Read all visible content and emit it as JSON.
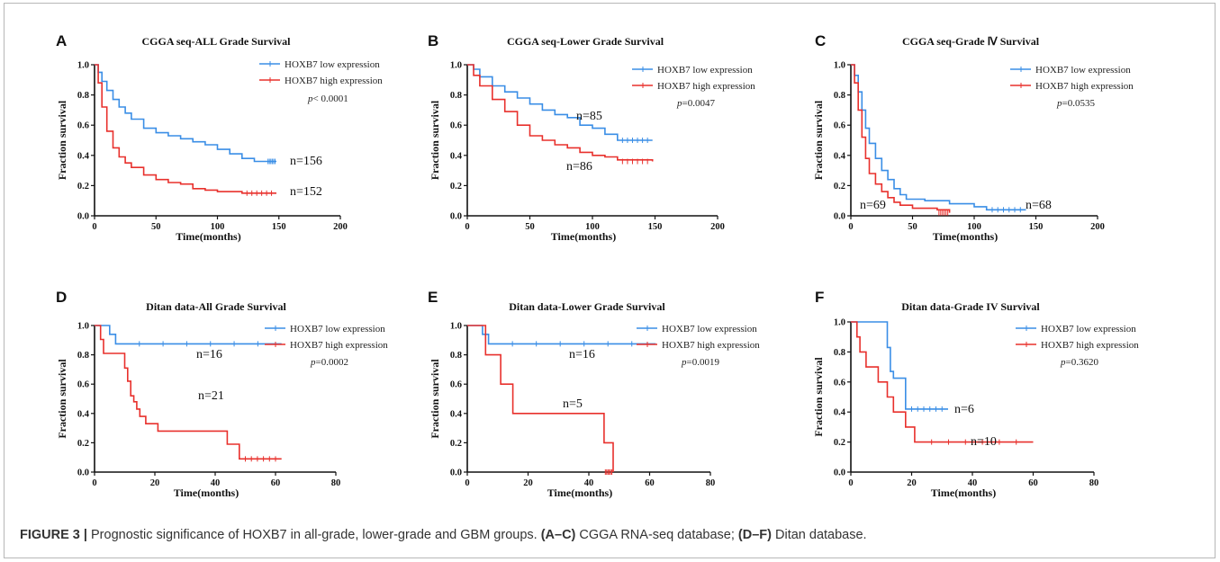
{
  "caption": {
    "label": "FIGURE 3 |",
    "text": "Prognostic significance of HOXB7 in all-grade, lower-grade and GBM groups.",
    "ref1": "(A–C)",
    "ref1_text": "CGGA RNA-seq database;",
    "ref2": "(D–F)",
    "ref2_text": "Ditan database."
  },
  "chart_data": [
    {
      "type": "line",
      "panel": "A",
      "title": "CGGA seq-ALL Grade Survival",
      "xlabel": "Time(months)",
      "ylabel": "Fraction survival",
      "xlim": [
        0,
        200
      ],
      "ylim": [
        0,
        1.0
      ],
      "xticks": [
        0,
        50,
        100,
        150,
        200
      ],
      "yticks": [
        0.0,
        0.2,
        0.4,
        0.6,
        0.8,
        1.0
      ],
      "legend_position": "right",
      "pvalue_label": "p",
      "pvalue_text": "< 0.0001",
      "colors": {
        "low": "#3a8ee6",
        "high": "#e8302c"
      },
      "series": [
        {
          "name": "HOXB7 low expression",
          "n_label": "n=156",
          "x": [
            0,
            3,
            6,
            10,
            15,
            20,
            25,
            30,
            40,
            50,
            60,
            70,
            80,
            90,
            100,
            110,
            120,
            130,
            140,
            148
          ],
          "y": [
            1.0,
            0.95,
            0.89,
            0.83,
            0.77,
            0.72,
            0.68,
            0.64,
            0.58,
            0.55,
            0.53,
            0.51,
            0.49,
            0.47,
            0.44,
            0.41,
            0.38,
            0.36,
            0.36,
            0.36
          ]
        },
        {
          "name": "HOXB7 high expression",
          "n_label": "n=152",
          "x": [
            0,
            3,
            6,
            10,
            15,
            20,
            25,
            30,
            40,
            50,
            60,
            70,
            80,
            90,
            100,
            120,
            148
          ],
          "y": [
            1.0,
            0.88,
            0.72,
            0.56,
            0.45,
            0.39,
            0.35,
            0.32,
            0.27,
            0.24,
            0.22,
            0.21,
            0.18,
            0.17,
            0.16,
            0.15,
            0.15
          ]
        }
      ]
    },
    {
      "type": "line",
      "panel": "B",
      "title": "CGGA seq-Lower Grade Survival",
      "xlabel": "Time(months)",
      "ylabel": "Fraction survival",
      "xlim": [
        0,
        200
      ],
      "ylim": [
        0,
        1.0
      ],
      "xticks": [
        0,
        50,
        100,
        150,
        200
      ],
      "yticks": [
        0.0,
        0.2,
        0.4,
        0.6,
        0.8,
        1.0
      ],
      "legend_position": "right",
      "pvalue_label": "p",
      "pvalue_text": "=0.0047",
      "colors": {
        "low": "#3a8ee6",
        "high": "#e8302c"
      },
      "series": [
        {
          "name": "HOXB7 low expression",
          "n_label": "n=85",
          "x": [
            0,
            5,
            10,
            20,
            30,
            40,
            50,
            60,
            70,
            80,
            90,
            100,
            110,
            120,
            148
          ],
          "y": [
            1.0,
            0.97,
            0.92,
            0.86,
            0.82,
            0.78,
            0.74,
            0.7,
            0.67,
            0.65,
            0.6,
            0.58,
            0.54,
            0.5,
            0.5
          ]
        },
        {
          "name": "HOXB7 high expression",
          "n_label": "n=86",
          "x": [
            0,
            5,
            10,
            20,
            30,
            40,
            50,
            60,
            70,
            80,
            90,
            100,
            110,
            120,
            148
          ],
          "y": [
            1.0,
            0.93,
            0.86,
            0.77,
            0.69,
            0.6,
            0.53,
            0.5,
            0.47,
            0.45,
            0.42,
            0.4,
            0.39,
            0.37,
            0.36
          ]
        }
      ]
    },
    {
      "type": "line",
      "panel": "C",
      "title": "CGGA seq-Grade Ⅳ Survival",
      "xlabel": "Time(months)",
      "ylabel": "Fraction survival",
      "xlim": [
        0,
        200
      ],
      "ylim": [
        0,
        1.0
      ],
      "xticks": [
        0,
        50,
        100,
        150,
        200
      ],
      "yticks": [
        0.0,
        0.2,
        0.4,
        0.6,
        0.8,
        1.0
      ],
      "legend_position": "right",
      "pvalue_label": "p",
      "pvalue_text": "=0.0535",
      "colors": {
        "low": "#3a8ee6",
        "high": "#e8302c"
      },
      "series": [
        {
          "name": "HOXB7 low expression",
          "n_label": "n=68",
          "x": [
            0,
            3,
            6,
            9,
            12,
            15,
            20,
            25,
            30,
            35,
            40,
            45,
            50,
            60,
            80,
            100,
            110,
            142
          ],
          "y": [
            1.0,
            0.93,
            0.82,
            0.7,
            0.58,
            0.48,
            0.38,
            0.3,
            0.24,
            0.18,
            0.14,
            0.11,
            0.11,
            0.1,
            0.08,
            0.06,
            0.04,
            0.04
          ]
        },
        {
          "name": "HOXB7 high expression",
          "n_label": "n=69",
          "x": [
            0,
            3,
            6,
            9,
            12,
            15,
            20,
            25,
            30,
            35,
            40,
            50,
            60,
            70,
            80
          ],
          "y": [
            1.0,
            0.88,
            0.7,
            0.52,
            0.38,
            0.28,
            0.21,
            0.16,
            0.12,
            0.09,
            0.07,
            0.05,
            0.05,
            0.04,
            0.02
          ]
        }
      ]
    },
    {
      "type": "line",
      "panel": "D",
      "title": "Ditan data-All Grade Survival",
      "xlabel": "Time(months)",
      "ylabel": "Fraction survival",
      "xlim": [
        0,
        80
      ],
      "ylim": [
        0,
        1.0
      ],
      "xticks": [
        0,
        20,
        40,
        60,
        80
      ],
      "yticks": [
        0.0,
        0.2,
        0.4,
        0.6,
        0.8,
        1.0
      ],
      "legend_position": "right",
      "pvalue_label": "p",
      "pvalue_text": "=0.0002",
      "colors": {
        "low": "#3a8ee6",
        "high": "#e8302c"
      },
      "series": [
        {
          "name": "HOXB7 low expression",
          "n_label": "n=16",
          "x": [
            0,
            5,
            7,
            62
          ],
          "y": [
            1.0,
            0.94,
            0.875,
            0.875
          ]
        },
        {
          "name": "HOXB7 high expression",
          "n_label": "n=21",
          "x": [
            0,
            2,
            3,
            5,
            10,
            11,
            12,
            13,
            14,
            15,
            17,
            19,
            21,
            44,
            48,
            62
          ],
          "y": [
            1.0,
            0.905,
            0.81,
            0.81,
            0.71,
            0.62,
            0.52,
            0.48,
            0.43,
            0.38,
            0.33,
            0.33,
            0.28,
            0.19,
            0.09,
            0.09
          ]
        }
      ]
    },
    {
      "type": "line",
      "panel": "E",
      "title": "Ditan data-Lower Grade Survival",
      "xlabel": "Time(months)",
      "ylabel": "Fraction survival",
      "xlim": [
        0,
        80
      ],
      "ylim": [
        0,
        1.0
      ],
      "xticks": [
        0,
        20,
        40,
        60,
        80
      ],
      "yticks": [
        0.0,
        0.2,
        0.4,
        0.6,
        0.8,
        1.0
      ],
      "legend_position": "right",
      "pvalue_label": "p",
      "pvalue_text": "=0.0019",
      "colors": {
        "low": "#3a8ee6",
        "high": "#e8302c"
      },
      "series": [
        {
          "name": "HOXB7 low expression",
          "n_label": "n=16",
          "x": [
            0,
            5,
            7,
            62
          ],
          "y": [
            1.0,
            0.94,
            0.875,
            0.875
          ]
        },
        {
          "name": "HOXB7 high expression",
          "n_label": "n=5",
          "x": [
            0,
            6,
            11,
            15,
            45,
            48
          ],
          "y": [
            1.0,
            0.8,
            0.6,
            0.4,
            0.2,
            0.0
          ]
        }
      ]
    },
    {
      "type": "line",
      "panel": "F",
      "title": "Ditan data-Grade IV Survival",
      "xlabel": "Time(months)",
      "ylabel": "Fraction survival",
      "xlim": [
        0,
        80
      ],
      "ylim": [
        0,
        1.0
      ],
      "xticks": [
        0,
        20,
        40,
        60,
        80
      ],
      "yticks": [
        0.0,
        0.2,
        0.4,
        0.6,
        0.8,
        1.0
      ],
      "legend_position": "right",
      "pvalue_label": "p",
      "pvalue_text": "=0.3620",
      "colors": {
        "low": "#3a8ee6",
        "high": "#e8302c"
      },
      "series": [
        {
          "name": "HOXB7 low expression",
          "n_label": "n=6",
          "x": [
            0,
            12,
            13,
            14,
            16,
            18,
            32
          ],
          "y": [
            1.0,
            0.83,
            0.67,
            0.625,
            0.625,
            0.42,
            0.42
          ]
        },
        {
          "name": "HOXB7 high expression",
          "n_label": "n=10",
          "x": [
            0,
            2,
            3,
            5,
            9,
            12,
            14,
            18,
            21,
            60
          ],
          "y": [
            1.0,
            0.9,
            0.8,
            0.7,
            0.6,
            0.5,
            0.4,
            0.3,
            0.2,
            0.2
          ]
        }
      ]
    }
  ]
}
